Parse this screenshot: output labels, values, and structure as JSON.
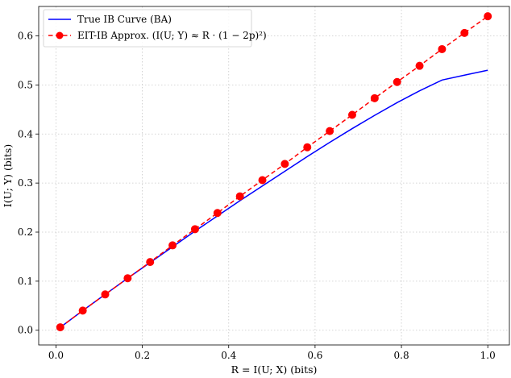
{
  "chart_data": {
    "type": "line",
    "xlabel": "R = I(U; X) (bits)",
    "ylabel": "I(U; Y) (bits)",
    "xlim": [
      -0.04,
      1.05
    ],
    "ylim": [
      -0.03,
      0.66
    ],
    "xticks": [
      "0.0",
      "0.2",
      "0.4",
      "0.6",
      "0.8",
      "1.0"
    ],
    "yticks": [
      "0.0",
      "0.1",
      "0.2",
      "0.3",
      "0.4",
      "0.5",
      "0.6"
    ],
    "grid": true,
    "legend_position": "top-left",
    "series": [
      {
        "name": "True IB Curve (BA)",
        "color": "#0000ff",
        "style": "solid",
        "marker": "none",
        "x": [
          0.01,
          0.062,
          0.114,
          0.166,
          0.218,
          0.27,
          0.322,
          0.374,
          0.426,
          0.478,
          0.53,
          0.582,
          0.634,
          0.686,
          0.738,
          0.79,
          0.842,
          0.894,
          0.946,
          1.0
        ],
        "y": [
          0.006,
          0.04,
          0.073,
          0.106,
          0.138,
          0.17,
          0.202,
          0.233,
          0.264,
          0.294,
          0.324,
          0.354,
          0.383,
          0.411,
          0.438,
          0.464,
          0.488,
          0.51,
          0.52,
          0.53
        ]
      },
      {
        "name": "EIT-IB Approx. (I(U; Y) ≈ R · (1 − 2p)²)",
        "color": "#ff0000",
        "style": "dashed",
        "marker": "circle",
        "x": [
          0.01,
          0.062,
          0.114,
          0.166,
          0.218,
          0.27,
          0.322,
          0.374,
          0.426,
          0.478,
          0.53,
          0.582,
          0.634,
          0.686,
          0.738,
          0.79,
          0.842,
          0.894,
          0.946,
          1.0
        ],
        "y": [
          0.006,
          0.04,
          0.073,
          0.106,
          0.139,
          0.173,
          0.206,
          0.239,
          0.273,
          0.306,
          0.339,
          0.373,
          0.406,
          0.439,
          0.473,
          0.506,
          0.539,
          0.573,
          0.606,
          0.64
        ]
      }
    ]
  }
}
